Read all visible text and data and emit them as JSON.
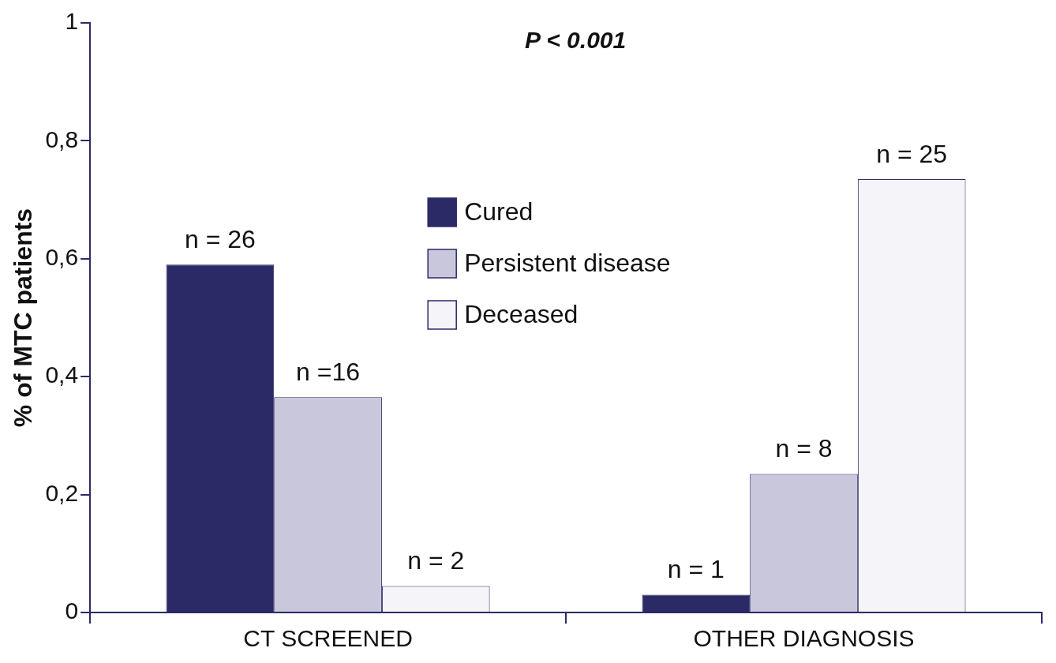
{
  "chart_data": {
    "type": "bar",
    "ylabel": "% of MTC patients",
    "annotations": [
      "P < 0.001",
      "n = 26",
      "n = 1",
      "n =16",
      "n = 8",
      "n = 2",
      "n = 25"
    ],
    "categories": [
      "CT SCREENED",
      "OTHER DIAGNOSIS"
    ],
    "series": [
      {
        "name": "Cured",
        "color": "#2b2a66",
        "values": [
          0.59,
          0.03
        ]
      },
      {
        "name": "Persistent disease",
        "color": "#c9c7dc",
        "values": [
          0.365,
          0.235
        ]
      },
      {
        "name": "Deceased",
        "color": "#f4f4f9",
        "values": [
          0.045,
          0.735
        ]
      }
    ],
    "ylim": [
      0,
      1
    ],
    "yticks": [
      0,
      {
        "value": 0.2,
        "label": "0,2"
      },
      {
        "value": 0.4,
        "label": "0,4"
      },
      {
        "value": 0.6,
        "label": "0,6"
      },
      {
        "value": 0.8,
        "label": "0,8"
      },
      1
    ],
    "grid": false,
    "legend": "top"
  }
}
